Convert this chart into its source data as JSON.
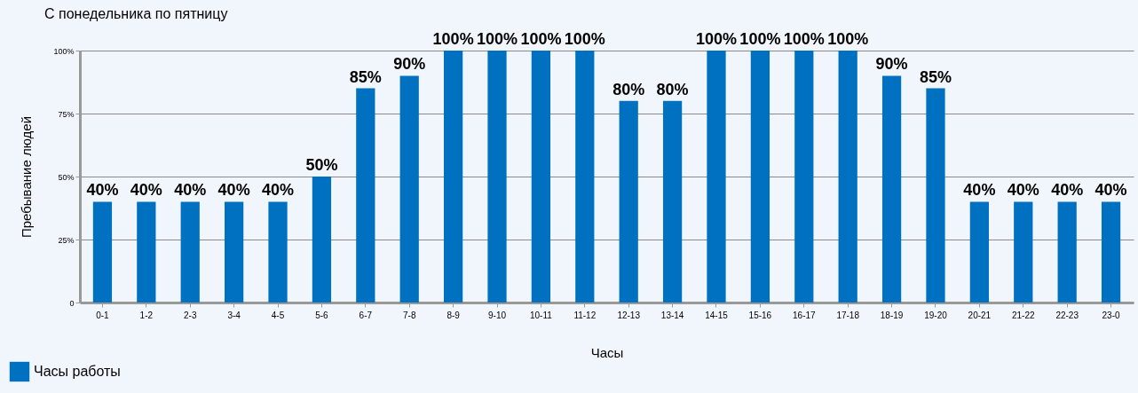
{
  "chart_data": {
    "type": "bar",
    "title": "С понедельника по пятницу",
    "xlabel": "Часы",
    "ylabel": "Пребывание людей",
    "categories": [
      "0-1",
      "1-2",
      "2-3",
      "3-4",
      "4-5",
      "5-6",
      "6-7",
      "7-8",
      "8-9",
      "9-10",
      "10-11",
      "11-12",
      "12-13",
      "13-14",
      "14-15",
      "15-16",
      "16-17",
      "17-18",
      "18-19",
      "19-20",
      "20-21",
      "21-22",
      "22-23",
      "23-0"
    ],
    "series": [
      {
        "name": "Часы работы",
        "color": "#0070c0",
        "values": [
          40,
          40,
          40,
          40,
          40,
          50,
          85,
          90,
          100,
          100,
          100,
          100,
          80,
          80,
          100,
          100,
          100,
          100,
          90,
          85,
          40,
          40,
          40,
          40
        ],
        "value_labels": [
          "40%",
          "40%",
          "40%",
          "40%",
          "40%",
          "50%",
          "85%",
          "90%",
          "100%",
          "100%",
          "100%",
          "100%",
          "80%",
          "80%",
          "100%",
          "100%",
          "100%",
          "100%",
          "90%",
          "85%",
          "40%",
          "40%",
          "40%",
          "40%"
        ]
      }
    ],
    "ylim": [
      0,
      100
    ],
    "yticks": [
      0,
      {
        "value": 25,
        "label": "25%"
      },
      {
        "value": 50,
        "label": "50%"
      },
      {
        "value": 75,
        "label": "75%"
      },
      {
        "value": 100,
        "label": "100%"
      }
    ],
    "grid": "y",
    "legend": "bottom"
  }
}
